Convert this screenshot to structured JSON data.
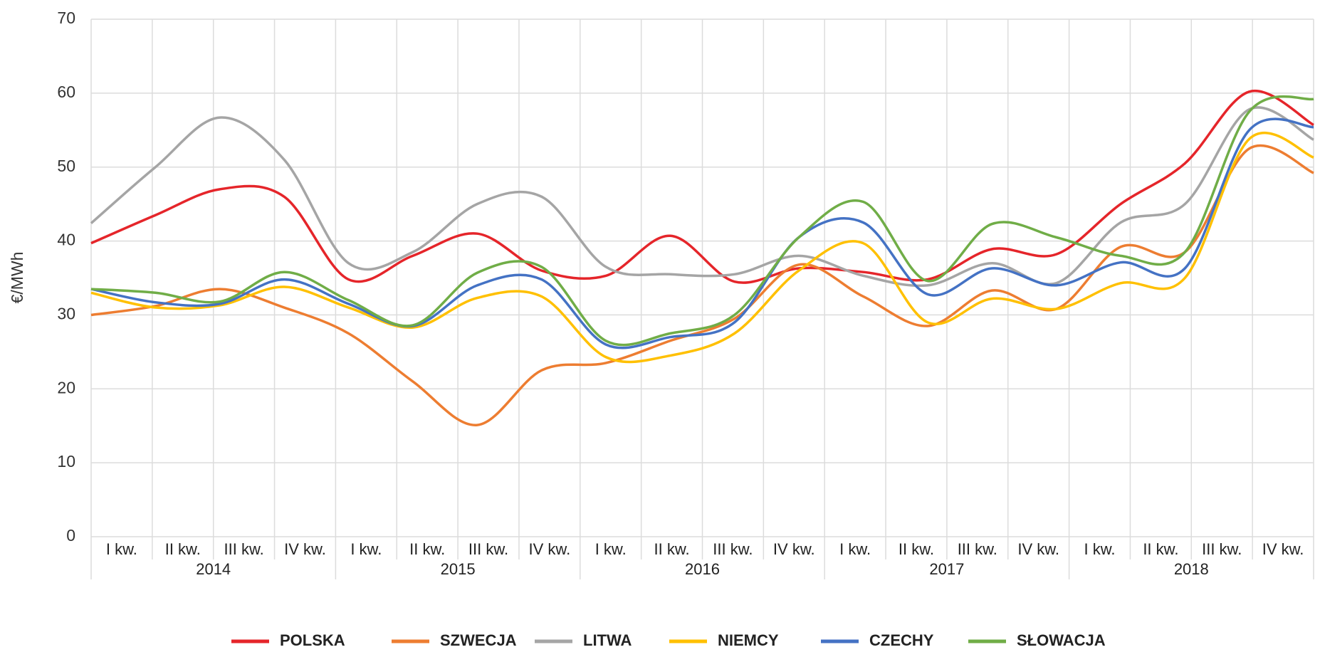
{
  "chart_data": {
    "type": "line",
    "smooth": true,
    "grid": true,
    "legend": "bottom",
    "ylabel": "€/MWh",
    "categories": [
      "I kw.",
      "II kw.",
      "III kw.",
      "IV kw.",
      "I kw.",
      "II kw.",
      "III kw.",
      "IV kw.",
      "I kw.",
      "II kw.",
      "III kw.",
      "IV kw.",
      "I kw.",
      "II kw.",
      "III kw.",
      "IV kw.",
      "I kw.",
      "II kw.",
      "III kw.",
      "IV kw."
    ],
    "groups": [
      "2014",
      "2015",
      "2016",
      "2017",
      "2018"
    ],
    "ylim": [
      0,
      70
    ],
    "yticks": [
      0,
      10,
      20,
      30,
      40,
      50,
      60,
      70
    ],
    "series": [
      {
        "name": "POLSKA",
        "color": "#e5252a",
        "values": [
          39.7,
          43.5,
          47,
          46,
          34.8,
          38,
          41,
          36,
          35.3,
          40.7,
          34.5,
          36.3,
          35.8,
          34.8,
          38.9,
          38.2,
          45,
          50.5,
          60.2,
          55.7
        ]
      },
      {
        "name": "SZWECJA",
        "color": "#ed7d31",
        "values": [
          30,
          31.2,
          33.5,
          31,
          27.5,
          21,
          15.1,
          22.5,
          23.5,
          26.5,
          29.5,
          36.8,
          32.5,
          28.5,
          33.3,
          30.8,
          39.2,
          38.5,
          52.5,
          49.2
        ]
      },
      {
        "name": "LITWA",
        "color": "#a5a5a5",
        "values": [
          42.4,
          50,
          56.7,
          51,
          37,
          38.5,
          45,
          46,
          36.5,
          35.5,
          35.5,
          38,
          35.3,
          34,
          37,
          34.3,
          42.5,
          45,
          57.8,
          53.7
        ]
      },
      {
        "name": "NIEMCY",
        "color": "#ffc000",
        "values": [
          33,
          31,
          31.3,
          33.8,
          31,
          28.3,
          32.3,
          32.5,
          24.3,
          24.5,
          27.5,
          36,
          39.7,
          29,
          32.2,
          30.8,
          34.3,
          35,
          53.8,
          51.3
        ]
      },
      {
        "name": "CZECHY",
        "color": "#4472c4",
        "values": [
          33.5,
          31.7,
          31.5,
          34.8,
          31.5,
          28.5,
          34,
          34.8,
          26,
          27,
          29,
          40.5,
          42.5,
          32.8,
          36.3,
          34,
          37.1,
          36.3,
          55,
          55.4
        ]
      },
      {
        "name": "SŁOWACJA",
        "color": "#70ad47",
        "values": [
          33.5,
          33,
          31.8,
          35.8,
          32,
          28.6,
          35.7,
          36.5,
          26.5,
          27.5,
          30,
          40.5,
          45.3,
          34.6,
          42.3,
          40.5,
          38,
          38.5,
          57.5,
          59.2
        ]
      }
    ]
  }
}
